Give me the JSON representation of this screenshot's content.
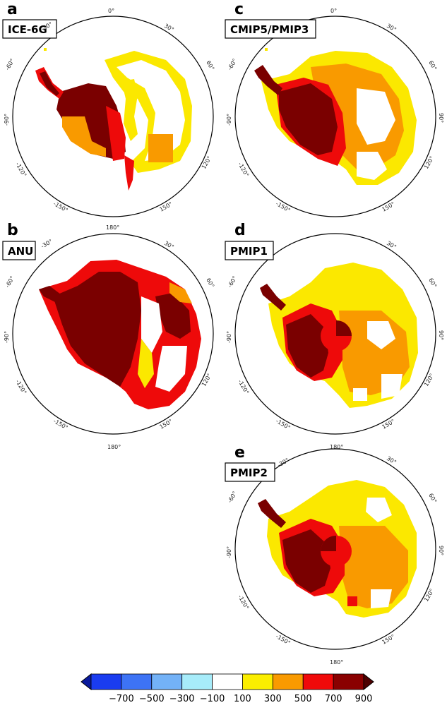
{
  "panels": [
    {
      "id": "a",
      "letter": "a",
      "title": "ICE-6G"
    },
    {
      "id": "b",
      "letter": "b",
      "title": "ANU"
    },
    {
      "id": "c",
      "letter": "c",
      "title": "CMIP5/PMIP3"
    },
    {
      "id": "d",
      "letter": "d",
      "title": "PMIP1"
    },
    {
      "id": "e",
      "letter": "e",
      "title": "PMIP2"
    }
  ],
  "longitude_labels": {
    "top": "0°",
    "bottom": "180°",
    "left": "-90°",
    "right": "90°",
    "upper_right": "30°",
    "mid_right": "60°",
    "lower_right": "120°",
    "low_right": "150°",
    "upper_left": "-30°",
    "mid_left": "-60°",
    "lower_left": "-120°",
    "low_left": "-150°"
  },
  "colorbar": {
    "tick_labels": [
      "−700",
      "−500",
      "−300",
      "−100",
      "100",
      "300",
      "500",
      "700",
      "900"
    ],
    "colors": [
      "#1a3cf0",
      "#3d73f5",
      "#73b2f7",
      "#a7ecfa",
      "#ffffff",
      "#fbee00",
      "#f99a00",
      "#f00a0a",
      "#8a0000"
    ],
    "under_color": "#0a1a9c",
    "over_color": "#4d0000",
    "boundaries": [
      -700,
      -500,
      -300,
      -100,
      100,
      300,
      500,
      700,
      900
    ]
  },
  "colors": {
    "dark_red": "#7a0000",
    "red": "#ee0a0a",
    "orange": "#f99a00",
    "yellow": "#fbe800",
    "white": "#ffffff",
    "frame": "#000000"
  }
}
